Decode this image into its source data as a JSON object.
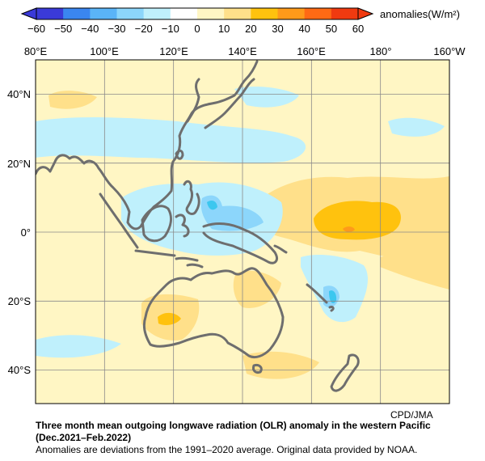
{
  "legend": {
    "ticks": [
      "−60",
      "−50",
      "−40",
      "−30",
      "−20",
      "−10",
      "0",
      "10",
      "20",
      "30",
      "40",
      "50",
      "60"
    ],
    "colors": [
      "#3a3ad8",
      "#3a86f0",
      "#5ab4f7",
      "#8cd6fb",
      "#bff0fc",
      "#ffffff",
      "#fff6c4",
      "#ffe08a",
      "#ffc20e",
      "#ff9a1a",
      "#ff6a14",
      "#f03a10"
    ],
    "unit_label": "anomalies(W/m²)"
  },
  "map": {
    "lon_labels": [
      "80°E",
      "100°E",
      "120°E",
      "140°E",
      "160°E",
      "180°",
      "160°W"
    ],
    "lat_labels": [
      "40°N",
      "20°N",
      "0°",
      "20°S",
      "40°S"
    ],
    "colors": {
      "background_anomaly": "#fff6c4",
      "weak_negative": "#bff0fc",
      "moderate_negative": "#8cd6fb",
      "strong_negative": "#3cc7ef",
      "weak_positive": "#ffe08a",
      "moderate_positive": "#ffc20e",
      "strong_positive": "#ff9a1a",
      "coastline": "#6e6e6e",
      "grid": "#8a8a8a"
    }
  },
  "caption": {
    "credit": "CPD/JMA",
    "title": "Three month mean outgoing longwave radiation (OLR) anomaly in the western Pacific",
    "period": "(Dec.2021–Feb.2022)",
    "note": "Anomalies are deviations from the 1991–2020 average. Original data provided by NOAA."
  }
}
